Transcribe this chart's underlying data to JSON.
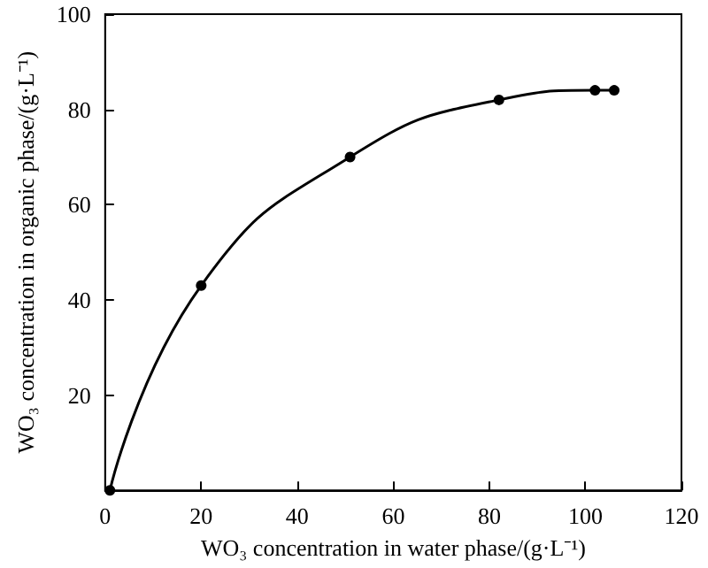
{
  "chart_data": {
    "type": "line",
    "xlabel": "WO₃ concentration in water phase/(g·L⁻¹)",
    "ylabel": "WO₃ concentration in organic phase/(g·L⁻¹)",
    "x": [
      1,
      20,
      51,
      82,
      102,
      106
    ],
    "series": [
      {
        "color": "#000000",
        "values": [
          0,
          43,
          70,
          82,
          84,
          84
        ]
      }
    ],
    "xlim": [
      0,
      120
    ],
    "xticks": [
      0,
      20,
      40,
      60,
      80,
      100,
      120
    ],
    "ylim": [
      0,
      100
    ],
    "yticks": [
      {
        "value": 0,
        "label": null
      },
      20,
      40,
      60,
      80,
      100
    ],
    "marker": "circle",
    "line_style": "solid"
  }
}
